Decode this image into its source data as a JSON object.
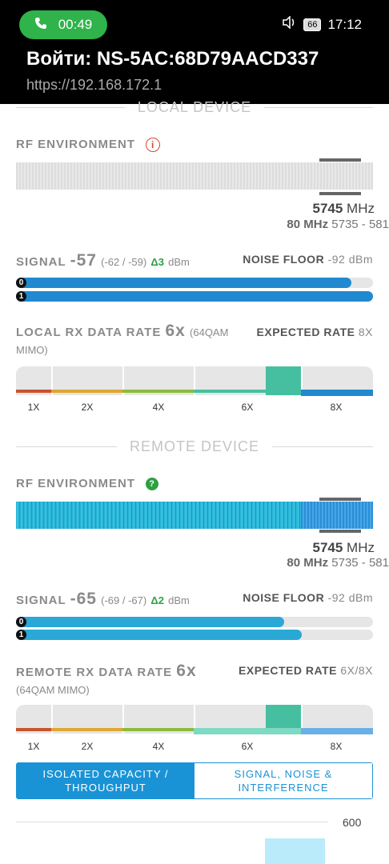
{
  "status_bar": {
    "call_time": "00:49",
    "battery": "66",
    "clock": "17:12"
  },
  "header": {
    "title": "Войти: NS-5AC:68D79AACD337",
    "url": "https://192.168.172.1"
  },
  "local": {
    "section_title": "LOCAL DEVICE",
    "rf_label": "RF ENVIRONMENT",
    "freq_main": "5745",
    "freq_unit": "MHz",
    "freq_width": "80 MHz",
    "freq_range": "5735 - 581",
    "signal_label": "SIGNAL",
    "signal_value": "-57",
    "signal_chains": "(-62 / -59)",
    "signal_delta": "Δ3",
    "signal_unit": "dBm",
    "noise_label": "NOISE FLOOR",
    "noise_value": "-92 dBm",
    "chain0_pct": 94,
    "chain1_pct": 100,
    "chain0_label": "0",
    "chain1_label": "1",
    "rx_label": "LOCAL RX DATA RATE",
    "rx_value": "6x",
    "rx_mod_line1": "(64QAM",
    "rx_mod_line2": "MIMO)",
    "expected_label": "EXPECTED RATE",
    "expected_value": "8X",
    "ticks": [
      "1X",
      "2X",
      "4X",
      "6X",
      "8X"
    ]
  },
  "remote": {
    "section_title": "REMOTE DEVICE",
    "rf_label": "RF ENVIRONMENT",
    "freq_main": "5745",
    "freq_unit": "MHz",
    "freq_width": "80 MHz",
    "freq_range": "5735 - 581",
    "signal_label": "SIGNAL",
    "signal_value": "-65",
    "signal_chains": "(-69 / -67)",
    "signal_delta": "Δ2",
    "signal_unit": "dBm",
    "noise_label": "NOISE FLOOR",
    "noise_value": "-92 dBm",
    "chain0_pct": 75,
    "chain1_pct": 80,
    "chain0_label": "0",
    "chain1_label": "1",
    "rx_label": "REMOTE RX DATA RATE",
    "rx_value": "6x",
    "rx_mod": "(64QAM MIMO)",
    "expected_label": "EXPECTED RATE",
    "expected_value": "6X/8X",
    "ticks": [
      "1X",
      "2X",
      "4X",
      "6X",
      "8X"
    ]
  },
  "tabs": {
    "active_line1": "ISOLATED CAPACITY /",
    "active_line2": "THROUGHPUT",
    "inactive_line1": "SIGNAL, NOISE &",
    "inactive_line2": "INTERFERENCE"
  },
  "chart": {
    "y_tick": "600"
  },
  "colors": {
    "accent": "#1a93d6",
    "good": "#2ea043",
    "rate_highlight": "#46bfa0"
  }
}
